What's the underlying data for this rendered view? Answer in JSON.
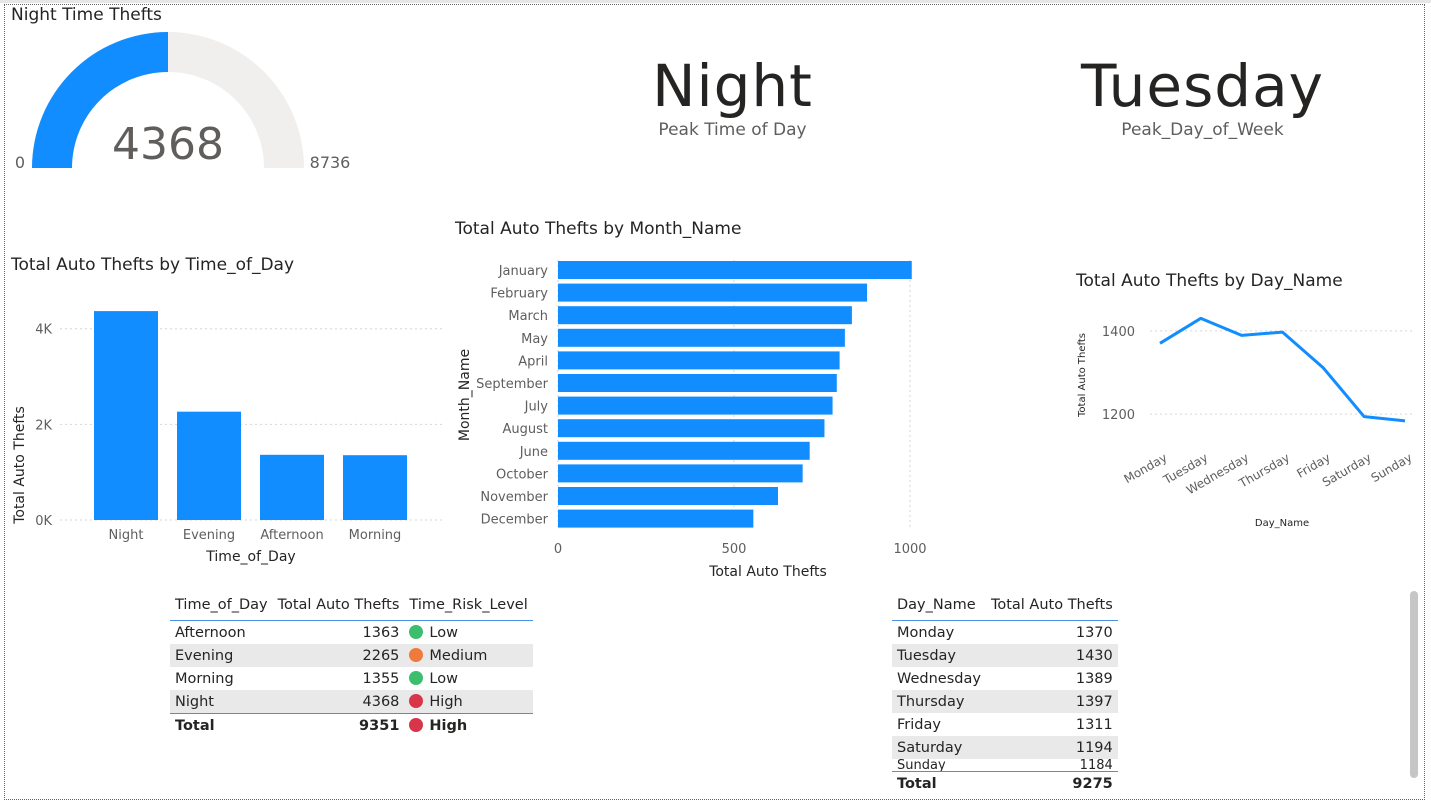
{
  "gauge": {
    "title": "Night Time Thefts",
    "value": 4368,
    "min": 0,
    "max": 8736,
    "value_label": "4368",
    "min_label": "0",
    "max_label": "8736",
    "fill_color": "#118DFF",
    "track_color": "#F0EFEE"
  },
  "card_time": {
    "value": "Night",
    "label": "Peak Time of Day"
  },
  "card_day": {
    "value": "Tuesday",
    "label": "Peak_Day_of_Week"
  },
  "chart_data": [
    {
      "type": "bar",
      "title": "Total Auto Thefts by Time_of_Day",
      "xlabel": "Time_of_Day",
      "ylabel": "Total Auto Thefts",
      "categories": [
        "Night",
        "Evening",
        "Afternoon",
        "Morning"
      ],
      "values": [
        4368,
        2265,
        1363,
        1355
      ],
      "ylim": [
        0,
        4600
      ],
      "yticks": [
        0,
        2000,
        4000
      ],
      "ytick_labels": [
        "0K",
        "2K",
        "4K"
      ],
      "color": "#118DFF",
      "grid": true
    },
    {
      "type": "bar",
      "orientation": "horizontal",
      "title": "Total Auto Thefts by Month_Name",
      "xlabel": "Total Auto Thefts",
      "ylabel": "Month_Name",
      "categories": [
        "January",
        "February",
        "March",
        "May",
        "April",
        "September",
        "July",
        "August",
        "June",
        "October",
        "November",
        "December"
      ],
      "values": [
        1005,
        878,
        835,
        815,
        800,
        792,
        780,
        757,
        715,
        695,
        625,
        555
      ],
      "xlim": [
        0,
        1000
      ],
      "xticks": [
        0,
        500,
        1000
      ],
      "color": "#118DFF",
      "grid": true
    },
    {
      "type": "line",
      "title": "Total Auto Thefts by Day_Name",
      "xlabel": "Day_Name",
      "ylabel": "Total Auto Thefts",
      "categories": [
        "Monday",
        "Tuesday",
        "Wednesday",
        "Thursday",
        "Friday",
        "Saturday",
        "Sunday"
      ],
      "values": [
        1370,
        1430,
        1389,
        1397,
        1311,
        1194,
        1184
      ],
      "yticks": [
        1200,
        1400
      ],
      "ylim": [
        1150,
        1450
      ],
      "color": "#118DFF",
      "grid": true
    }
  ],
  "table_time": {
    "headers": [
      "Time_of_Day",
      "Total Auto Thefts",
      "Time_Risk_Level"
    ],
    "rows": [
      {
        "time": "Afternoon",
        "count": "1363",
        "risk": "Low",
        "color": "#3DBE6E"
      },
      {
        "time": "Evening",
        "count": "2265",
        "risk": "Medium",
        "color": "#F07A3C"
      },
      {
        "time": "Morning",
        "count": "1355",
        "risk": "Low",
        "color": "#3DBE6E"
      },
      {
        "time": "Night",
        "count": "4368",
        "risk": "High",
        "color": "#D8354B"
      }
    ],
    "total": {
      "label": "Total",
      "count": "9351",
      "risk": "High",
      "color": "#D8354B"
    }
  },
  "table_day": {
    "headers": [
      "Day_Name",
      "Total Auto Thefts"
    ],
    "rows": [
      {
        "day": "Monday",
        "count": "1370"
      },
      {
        "day": "Tuesday",
        "count": "1430"
      },
      {
        "day": "Wednesday",
        "count": "1389"
      },
      {
        "day": "Thursday",
        "count": "1397"
      },
      {
        "day": "Friday",
        "count": "1311"
      },
      {
        "day": "Saturday",
        "count": "1194"
      },
      {
        "day": "Sunday",
        "count": "1184"
      }
    ],
    "total": {
      "label": "Total",
      "count": "9275"
    }
  }
}
